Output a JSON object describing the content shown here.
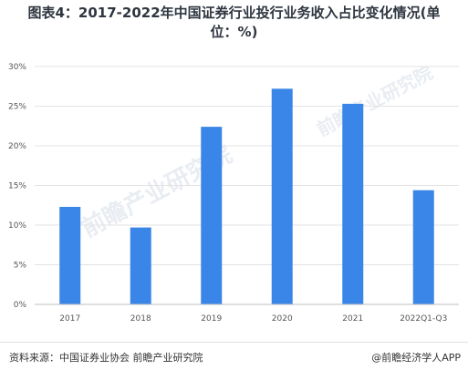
{
  "title_lines": [
    "图表4：2017-2022年中国证券行业投行业务收入占比变化情况(单",
    "位：%)"
  ],
  "footer": {
    "source": "资料来源：中国证券业协会 前瞻产业研究院",
    "brand": "@前瞻经济学人APP"
  },
  "watermark": "前瞻产业研究院",
  "colors": {
    "bar": "#3a86e8",
    "grid": "#e3e3e3",
    "axis": "#bfbfbf"
  },
  "chart_data": {
    "type": "bar",
    "categories": [
      "2017",
      "2018",
      "2019",
      "2020",
      "2021",
      "2022Q1-Q3"
    ],
    "values": [
      12.3,
      9.7,
      22.4,
      27.2,
      25.3,
      14.4
    ],
    "ylim": [
      0,
      30
    ],
    "yticks": [
      0,
      5,
      10,
      15,
      20,
      25,
      30
    ],
    "ytick_labels": [
      "0%",
      "5%",
      "10%",
      "15%",
      "20%",
      "25%",
      "30%"
    ],
    "grid": true,
    "xlabel": "",
    "ylabel": ""
  }
}
